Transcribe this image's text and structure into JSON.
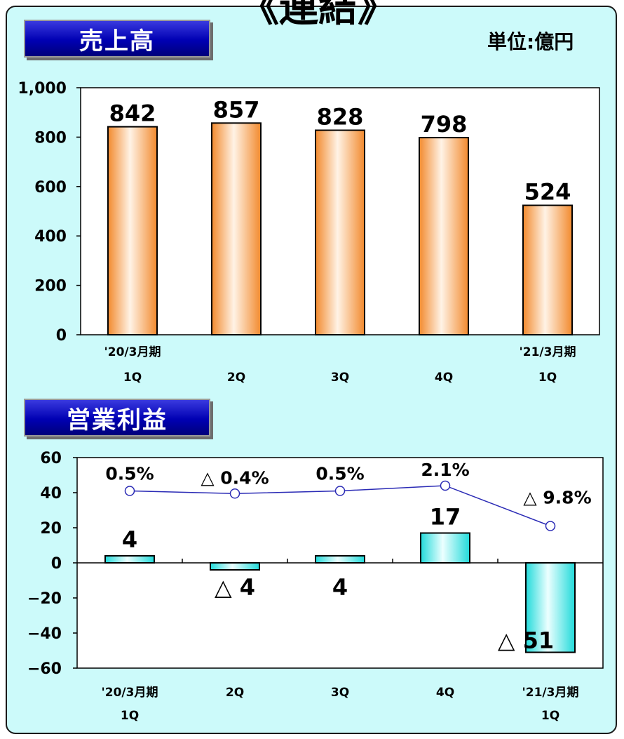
{
  "page_title": "《連結》",
  "unit": "単位:億円",
  "sales_section": {
    "title": "売上高"
  },
  "op_section": {
    "title": "営業利益"
  },
  "chart_data": [
    {
      "type": "bar",
      "title": "売上高",
      "categories": [
        "'20/3月期 1Q",
        "2Q",
        "3Q",
        "4Q",
        "'21/3月期 1Q"
      ],
      "category_lines": [
        [
          "'20/3月期",
          "1Q"
        ],
        [
          "",
          "2Q"
        ],
        [
          "",
          "3Q"
        ],
        [
          "",
          "4Q"
        ],
        [
          "'21/3月期",
          "1Q"
        ]
      ],
      "values": [
        842,
        857,
        828,
        798,
        524
      ],
      "data_labels": [
        "842",
        "857",
        "828",
        "798",
        "524"
      ],
      "ylim": [
        0,
        1000
      ],
      "yticks": [
        0,
        200,
        400,
        600,
        800,
        1000
      ],
      "ytick_labels": [
        "0",
        "200",
        "400",
        "600",
        "800",
        "1,000"
      ],
      "bar_color": "#f59b45",
      "grid": false
    },
    {
      "type": "bar",
      "title": "営業利益",
      "categories": [
        "'20/3月期 1Q",
        "2Q",
        "3Q",
        "4Q",
        "'21/3月期 1Q"
      ],
      "category_lines": [
        [
          "'20/3月期",
          "1Q"
        ],
        [
          "2Q",
          ""
        ],
        [
          "3Q",
          ""
        ],
        [
          "4Q",
          ""
        ],
        [
          "'21/3月期",
          "1Q"
        ]
      ],
      "values": [
        4,
        -4,
        4,
        17,
        -51
      ],
      "data_labels": [
        "4",
        "△ 4",
        "4",
        "17",
        "△ 51"
      ],
      "margin_line": {
        "values": [
          0.5,
          -0.4,
          0.5,
          2.1,
          -9.8
        ],
        "labels": [
          "0.5%",
          "△ 0.4%",
          "0.5%",
          "2.1%",
          "△ 9.8%"
        ],
        "color": "#2a2ab5"
      },
      "ylim": [
        -60,
        60
      ],
      "yticks": [
        -60,
        -40,
        -20,
        0,
        20,
        40,
        60
      ],
      "ytick_labels": [
        "−60",
        "−40",
        "−20",
        "0",
        "20",
        "40",
        "60"
      ],
      "bar_color": "#33e6e6",
      "grid": false
    }
  ]
}
